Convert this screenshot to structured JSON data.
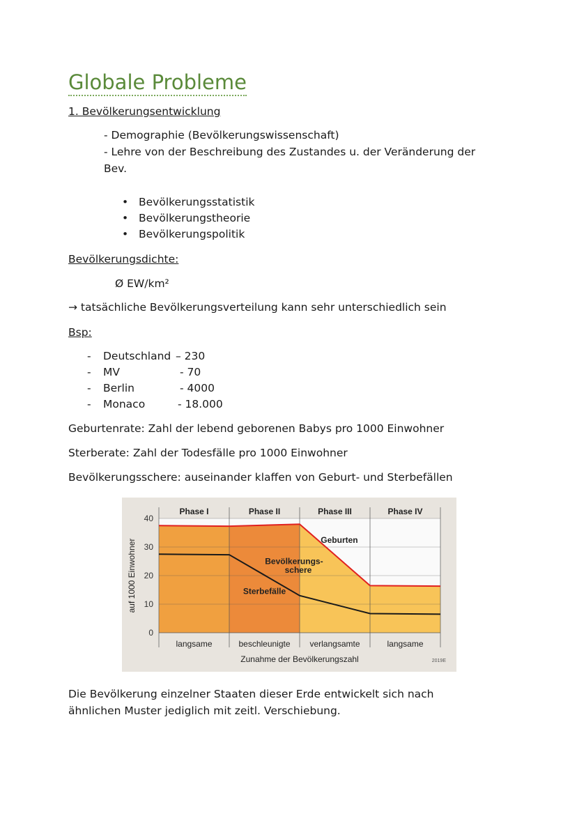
{
  "title": "Globale Probleme",
  "section1": "1. Bevölkerungsentwicklung",
  "intro": [
    "- Demographie (Bevölkerungswissenschaft)",
    "- Lehre von der Beschreibung des Zustandes u. der Veränderung der",
    "Bev."
  ],
  "bullets": [
    "Bevölkerungsstatistik",
    "Bevölkerungstheorie",
    "Bevölkerungspolitik"
  ],
  "density_heading": "Bevölkerungsdichte:",
  "density_unit": "Ø EW/km²",
  "density_note": "→ tatsächliche Bevölkerungsverteilung kann sehr unterschiedlich sein",
  "example_heading": "Bsp:",
  "examples": [
    {
      "name": "Deutschland",
      "value": "– 230"
    },
    {
      "name": "MV",
      "value": "- 70"
    },
    {
      "name": "Berlin",
      "value": "- 4000"
    },
    {
      "name": "Monaco",
      "value": "- 18.000"
    }
  ],
  "definitions": [
    "Geburtenrate: Zahl der lebend geborenen Babys pro 1000 Einwohner",
    "Sterberate: Zahl der Todesfälle pro 1000 Einwohner",
    "Bevölkerungsschere: auseinander klaffen von Geburt- und Sterbefällen"
  ],
  "conclusion": [
    "Die Bevölkerung einzelner Staaten dieser Erde entwickelt sich nach",
    "ähnlichen Muster jediglich mit zeitl. Verschiebung."
  ],
  "chart_data": {
    "type": "area",
    "ylabel": "auf 1000 Einwohner",
    "xlabel": "Zunahme der Bevölkerungszahl",
    "ylim": [
      0,
      40
    ],
    "yticks": [
      0,
      10,
      20,
      30,
      40
    ],
    "phases": [
      "Phase I",
      "Phase II",
      "Phase III",
      "Phase IV"
    ],
    "phase_labels": [
      "langsame",
      "beschleunigte",
      "verlangsamte",
      "langsame"
    ],
    "x": [
      0,
      1,
      2,
      3,
      4
    ],
    "series": [
      {
        "name": "Geburten",
        "values": [
          37.5,
          37.3,
          38,
          16.5,
          16.3
        ]
      },
      {
        "name": "Sterbefälle",
        "values": [
          27.5,
          27.3,
          13,
          6.7,
          6.5
        ]
      }
    ],
    "annotation": "Bevölkerungs-schere",
    "annotation_lines": [
      "Bevölkerungs-",
      "schere"
    ],
    "code": "2019E",
    "colors": {
      "births_line": "#e02020",
      "deaths_line": "#1a1a1a",
      "phase12": "#f0a040",
      "phase2_scissors": "#ec8a3a",
      "phase34": "#f8c458",
      "background": "#e8e4de"
    }
  }
}
